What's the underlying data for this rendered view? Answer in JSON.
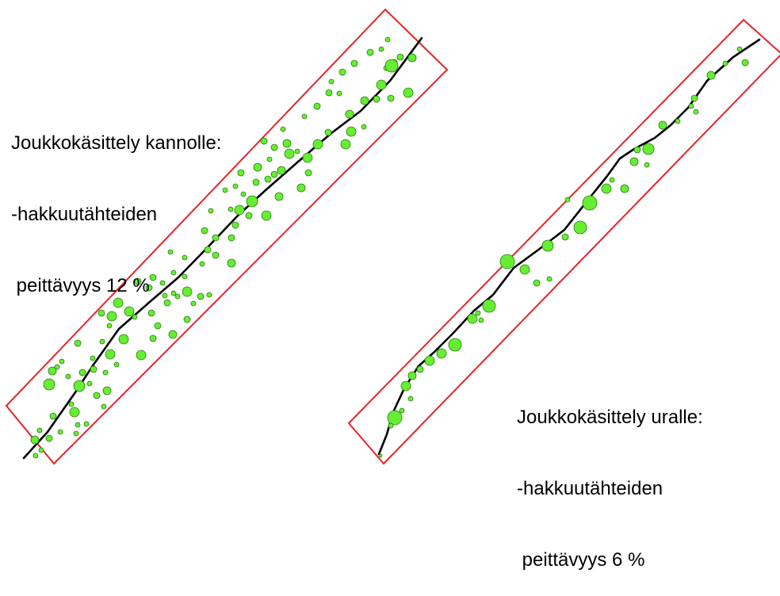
{
  "panels": {
    "left": {
      "caption": [
        "Joukkokäsittely kannolle:",
        "-hakkuutähteiden",
        " peittävyys 12 %"
      ],
      "coverage_percent": 12
    },
    "right": {
      "caption": [
        "Joukkokäsittely uralle:",
        "-hakkuutähteiden",
        " peittävyys 6 %"
      ],
      "coverage_percent": 6
    }
  },
  "colors": {
    "strip_border": "#e3262a",
    "track_line": "#000000",
    "slash_patch_fill": "#66ee33",
    "slash_patch_outline": "#2a7a10",
    "background": "#ffffff"
  }
}
